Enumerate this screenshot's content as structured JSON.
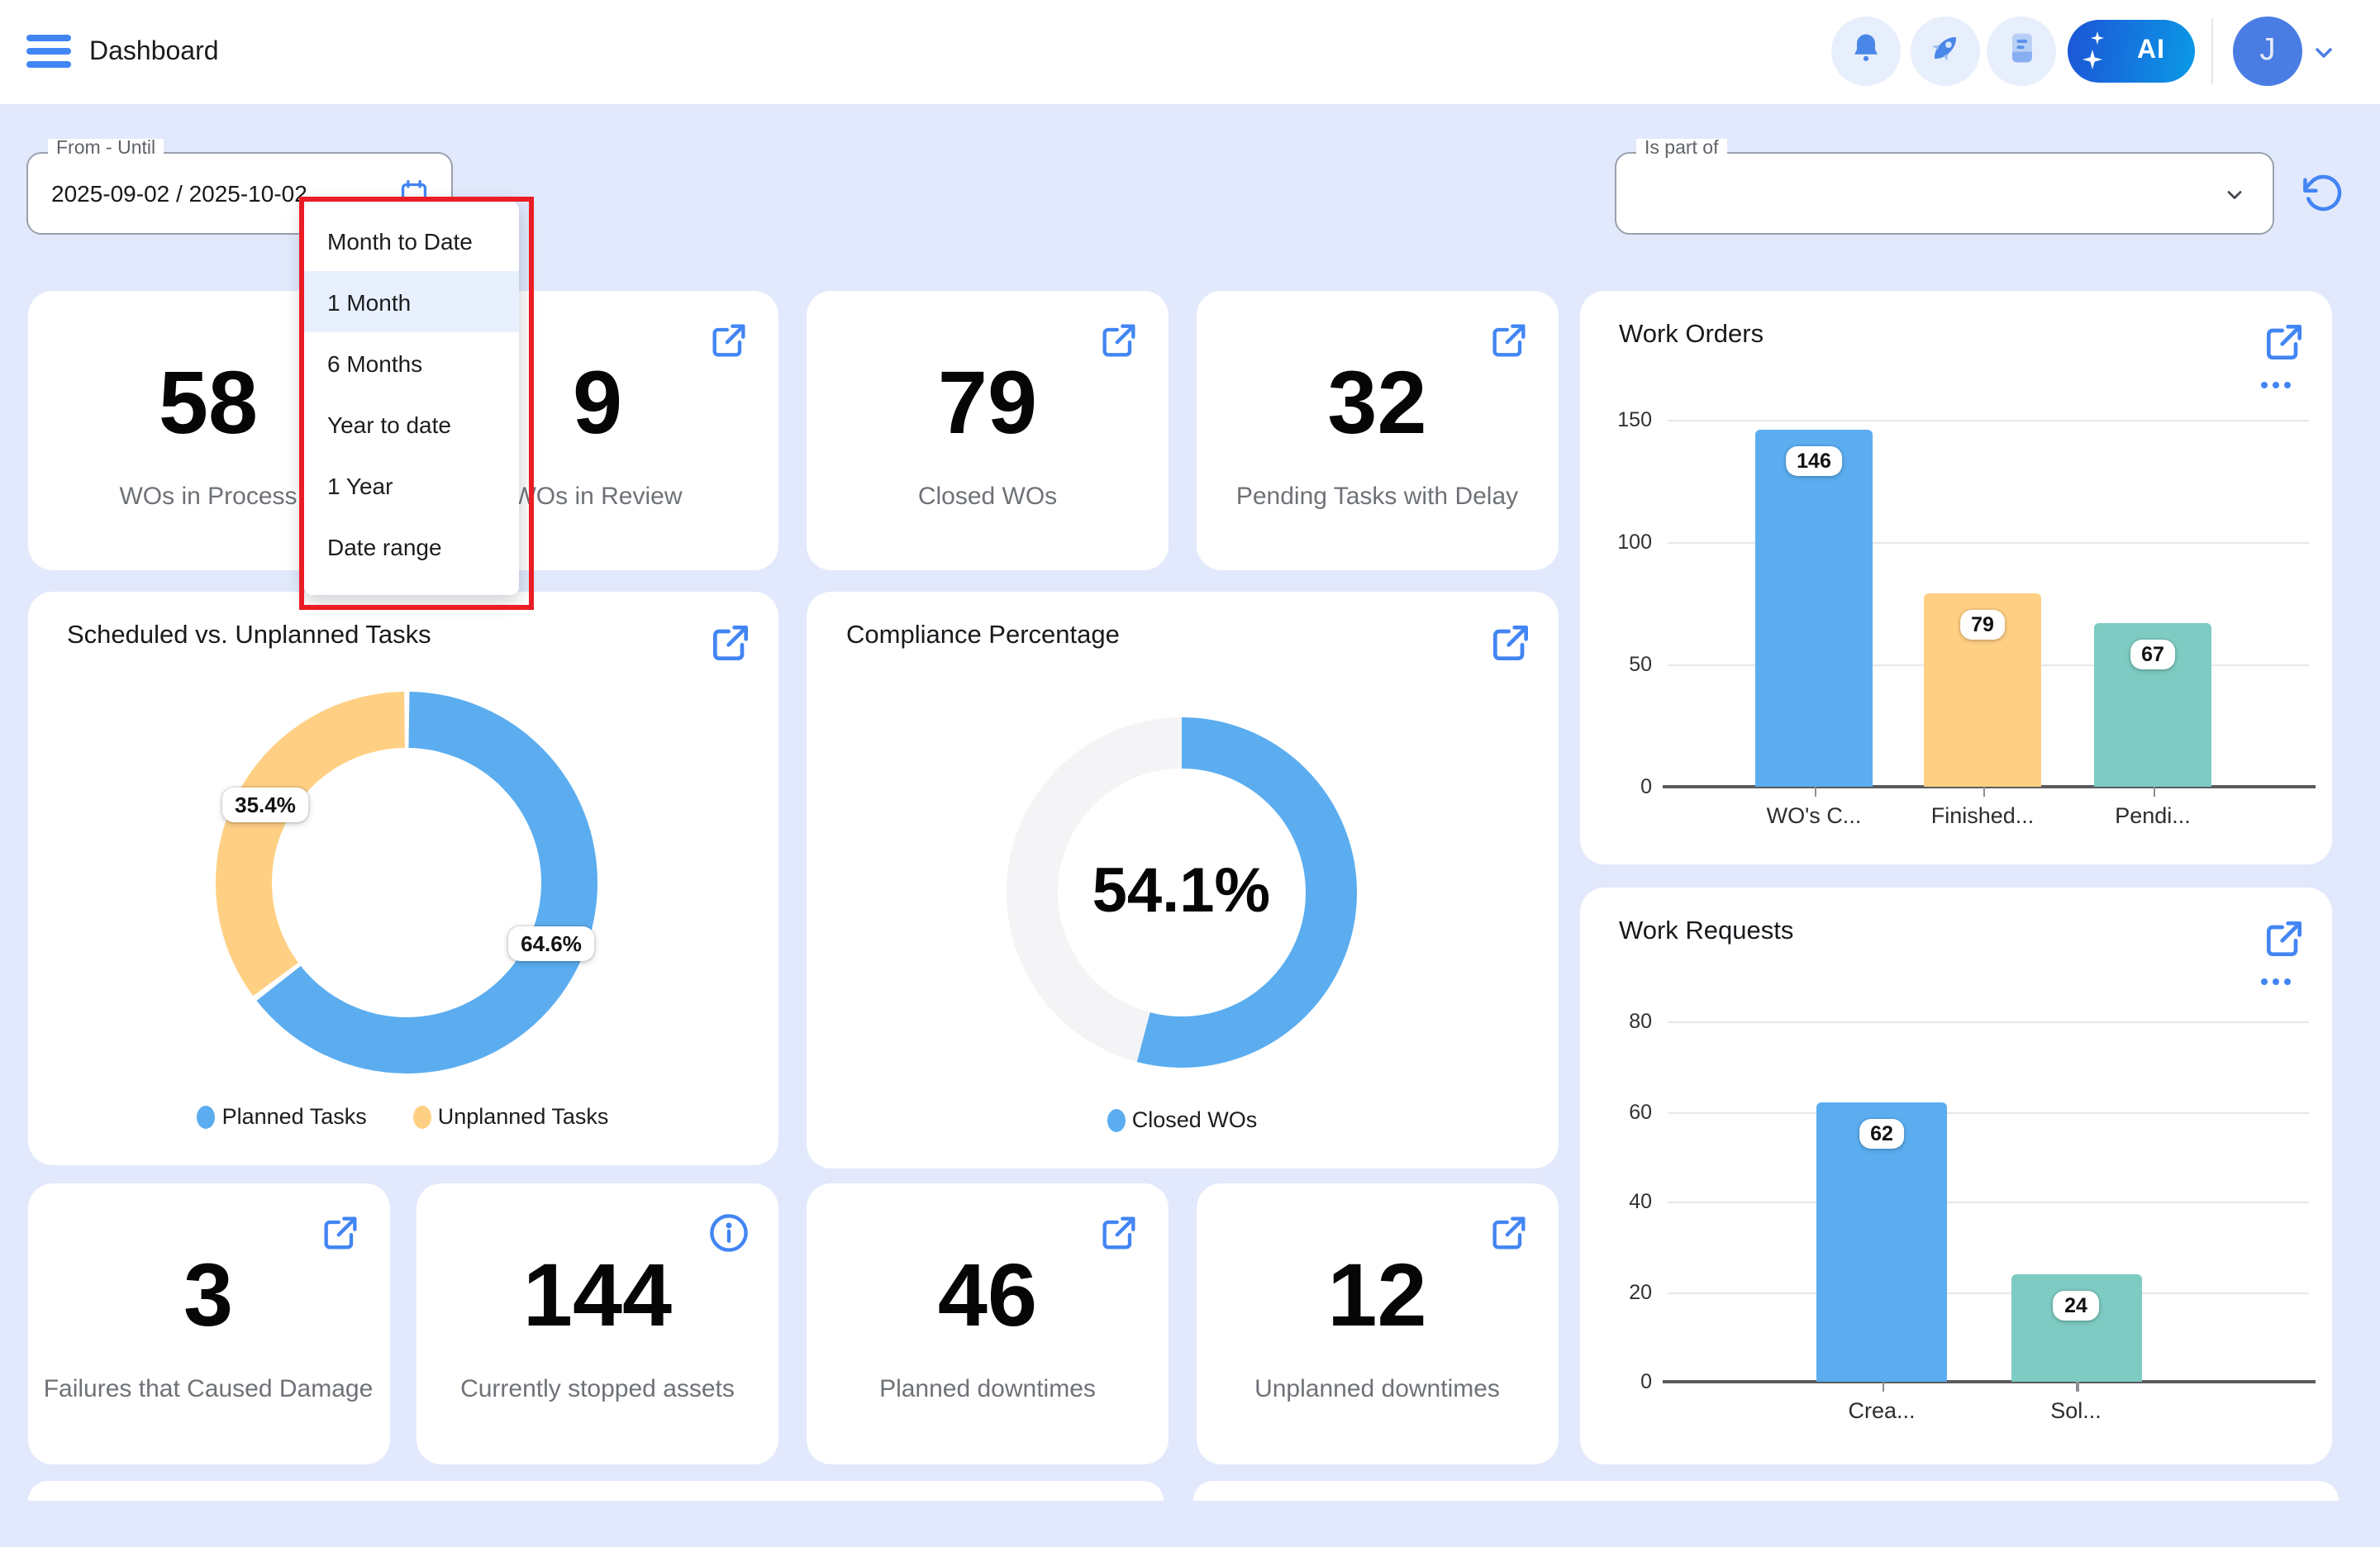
{
  "header": {
    "title": "Dashboard",
    "ai_button": "AI",
    "avatar_initial": "J"
  },
  "filters": {
    "from_until": {
      "label": "From - Until",
      "value": "2025-09-02 / 2025-10-02"
    },
    "is_part_of": {
      "label": "Is part of",
      "value": ""
    },
    "range_menu": {
      "items": [
        "Month to Date",
        "1 Month",
        "6 Months",
        "Year to date",
        "1 Year",
        "Date range"
      ],
      "selected_index": 1
    }
  },
  "kpis": [
    {
      "value": "58",
      "label": "WOs in Process"
    },
    {
      "value": "9",
      "label": "WOs in Review"
    },
    {
      "value": "79",
      "label": "Closed WOs"
    },
    {
      "value": "32",
      "label": "Pending Tasks with Delay"
    },
    {
      "value": "3",
      "label": "Failures that Caused Damage"
    },
    {
      "value": "144",
      "label": "Currently stopped assets"
    },
    {
      "value": "46",
      "label": "Planned downtimes"
    },
    {
      "value": "12",
      "label": "Unplanned downtimes"
    }
  ],
  "chart_data": [
    {
      "key": "work_orders",
      "type": "bar",
      "title": "Work Orders",
      "categories": [
        "WO's C...",
        "Finished...",
        "Pendi..."
      ],
      "values": [
        146,
        79,
        67
      ],
      "bar_colors": [
        "#5badf0",
        "#ffd084",
        "#7dcbc2"
      ],
      "ylim": [
        0,
        150
      ],
      "yticks": [
        0,
        50,
        100,
        150
      ],
      "grid": true,
      "legend_position": "none"
    },
    {
      "key": "work_requests",
      "type": "bar",
      "title": "Work Requests",
      "categories": [
        "Crea...",
        "Sol..."
      ],
      "values": [
        62,
        24
      ],
      "bar_colors": [
        "#5badf0",
        "#7dcbc2"
      ],
      "ylim": [
        0,
        80
      ],
      "yticks": [
        0,
        20,
        40,
        60,
        80
      ],
      "grid": true,
      "legend_position": "none"
    },
    {
      "key": "scheduled_vs_unplanned",
      "type": "pie",
      "donut": true,
      "title": "Scheduled vs. Unplanned Tasks",
      "series": [
        {
          "name": "Planned Tasks",
          "value": 64.6,
          "label": "64.6%",
          "color": "#5badf0"
        },
        {
          "name": "Unplanned Tasks",
          "value": 35.4,
          "label": "35.4%",
          "color": "#ffd084"
        }
      ],
      "start_angle_deg": 0,
      "direction": "clockwise",
      "legend_position": "bottom"
    },
    {
      "key": "compliance",
      "type": "pie",
      "donut": true,
      "title": "Compliance Percentage",
      "center_label": "54.1%",
      "series": [
        {
          "name": "Closed WOs",
          "value": 54.1,
          "label": "",
          "color": "#5badf0"
        },
        {
          "name": "",
          "value": 45.9,
          "label": "",
          "color": "#f4f4f6"
        }
      ],
      "start_angle_deg": 0,
      "direction": "clockwise",
      "legend_position": "bottom"
    }
  ],
  "colors": {
    "background": "#e2e9fc",
    "card": "#ffffff",
    "accent_blue": "#4285f4",
    "bar_blue": "#5badf0",
    "bar_orange": "#ffd084",
    "bar_teal": "#7dcbc2",
    "annotation_red": "#ec1c24",
    "selected_menu_item": "#e9f0fd"
  }
}
